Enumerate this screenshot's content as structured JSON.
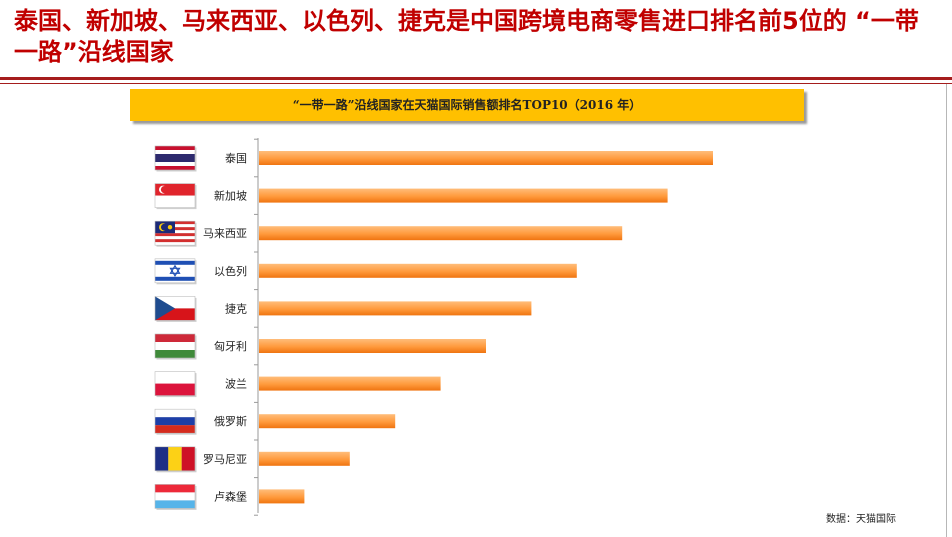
{
  "page": {
    "title": "泰国、新加坡、马来西亚、以色列、捷克是中国跨境电商零售进口排名前5位的 “一带一路”沿线国家"
  },
  "colors": {
    "title": "#c00000",
    "rule": "#a51d1d",
    "banner": "#ffc000",
    "bar_light": "#ffb26b",
    "bar_dark": "#f47a10"
  },
  "chart_data": {
    "type": "bar",
    "orientation": "horizontal",
    "title": "“一带一路”沿线国家在天猫国际销售额排名TOP10（2016 年）",
    "categories": [
      "泰国",
      "新加坡",
      "马来西亚",
      "以色列",
      "捷克",
      "匈牙利",
      "波兰",
      "俄罗斯",
      "罗马尼亚",
      "卢森堡"
    ],
    "values": [
      10,
      9,
      8,
      7,
      6,
      5,
      4,
      3,
      2,
      1
    ],
    "flags": [
      "thailand-flag-icon",
      "singapore-flag-icon",
      "malaysia-flag-icon",
      "israel-flag-icon",
      "czech-flag-icon",
      "hungary-flag-icon",
      "poland-flag-icon",
      "russia-flag-icon",
      "romania-flag-icon",
      "luxembourg-flag-icon"
    ],
    "xlim": [
      0,
      10
    ],
    "value_axis_labels": false,
    "grid": false,
    "legend": "none"
  },
  "source": "数据：天猫国际"
}
